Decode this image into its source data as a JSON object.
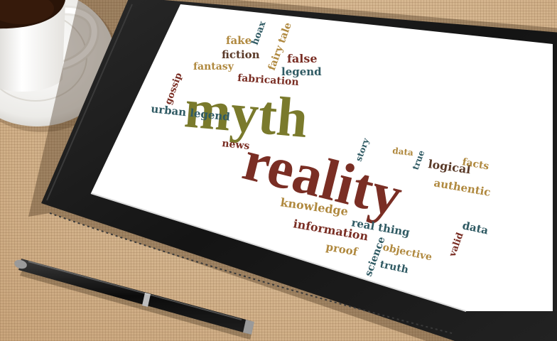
{
  "scene": {
    "background": "burlap fabric",
    "objects": [
      "coffee-cup",
      "saucer",
      "tablet",
      "pen"
    ]
  },
  "colors": {
    "olive": "#7a7a2c",
    "maroon": "#7a2e24",
    "teal": "#2f5a63",
    "tan": "#b0893f",
    "brown": "#5a3a28",
    "burlap": "#d9bd98",
    "tablet": "#1b1b1b",
    "screen": "#ffffff"
  },
  "wordcloud": {
    "myth": "myth",
    "reality": "reality",
    "fake": "fake",
    "hoax": "hoax",
    "fairy_tale": "fairy tale",
    "false": "false",
    "fiction": "fiction",
    "fantasy": "fantasy",
    "legend": "legend",
    "fabrication": "fabrication",
    "gossip": "gossip",
    "urban_legend": "urban legend",
    "news": "news",
    "story": "story",
    "data_top": "data",
    "true": "true",
    "logical": "logical",
    "facts": "facts",
    "authentic": "authentic",
    "knowledge": "knowledge",
    "information": "information",
    "real_thing": "real thing",
    "science": "science",
    "proof": "proof",
    "objective": "objective",
    "truth": "truth",
    "data_bottom": "data",
    "valid": "valid"
  }
}
